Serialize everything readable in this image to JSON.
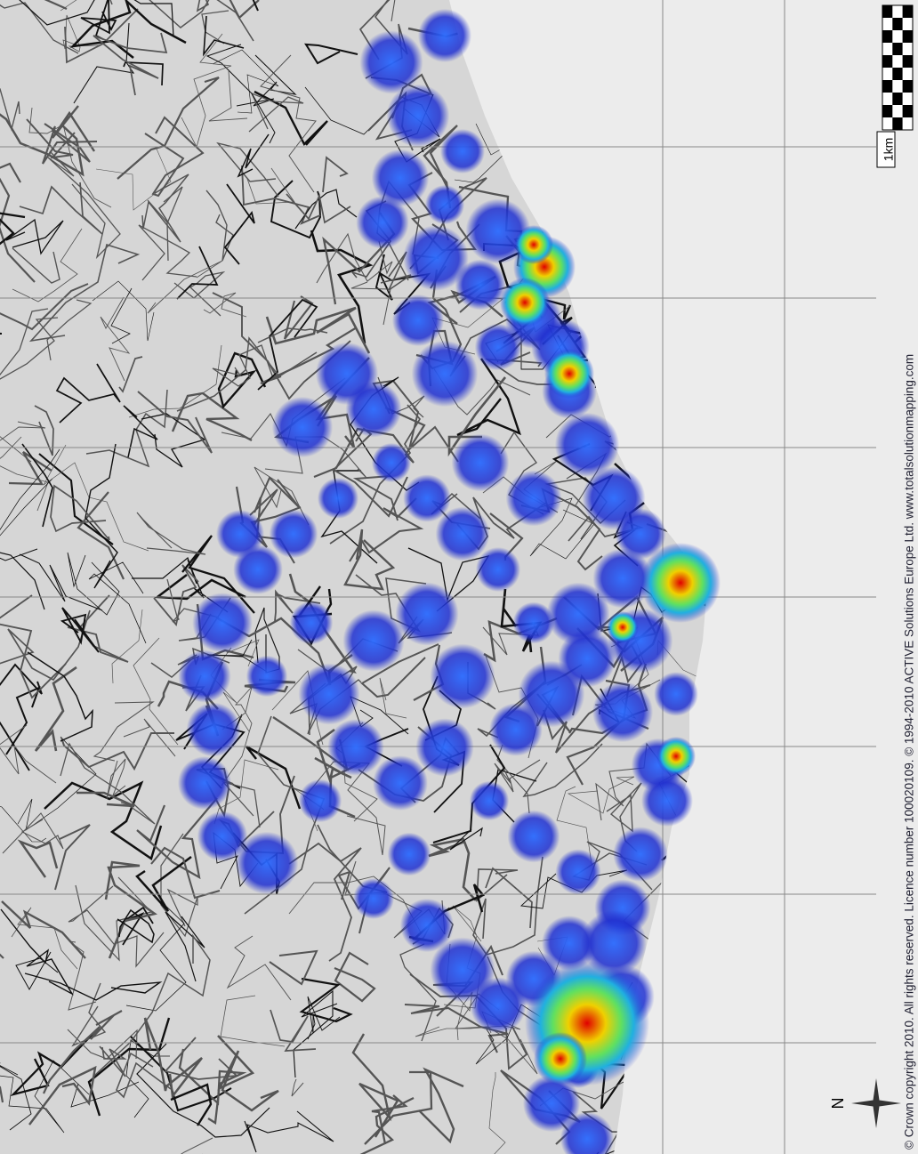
{
  "copyright": "© Crown copyright 2010. All rights reserved. Licence number 100020109. © 1994-2010 ACTIVE Solutions Europe Ltd. www.totalsolutionmapping.com",
  "scale_bar": {
    "label": "1km"
  },
  "north_arrow": {
    "label": "N"
  }
}
